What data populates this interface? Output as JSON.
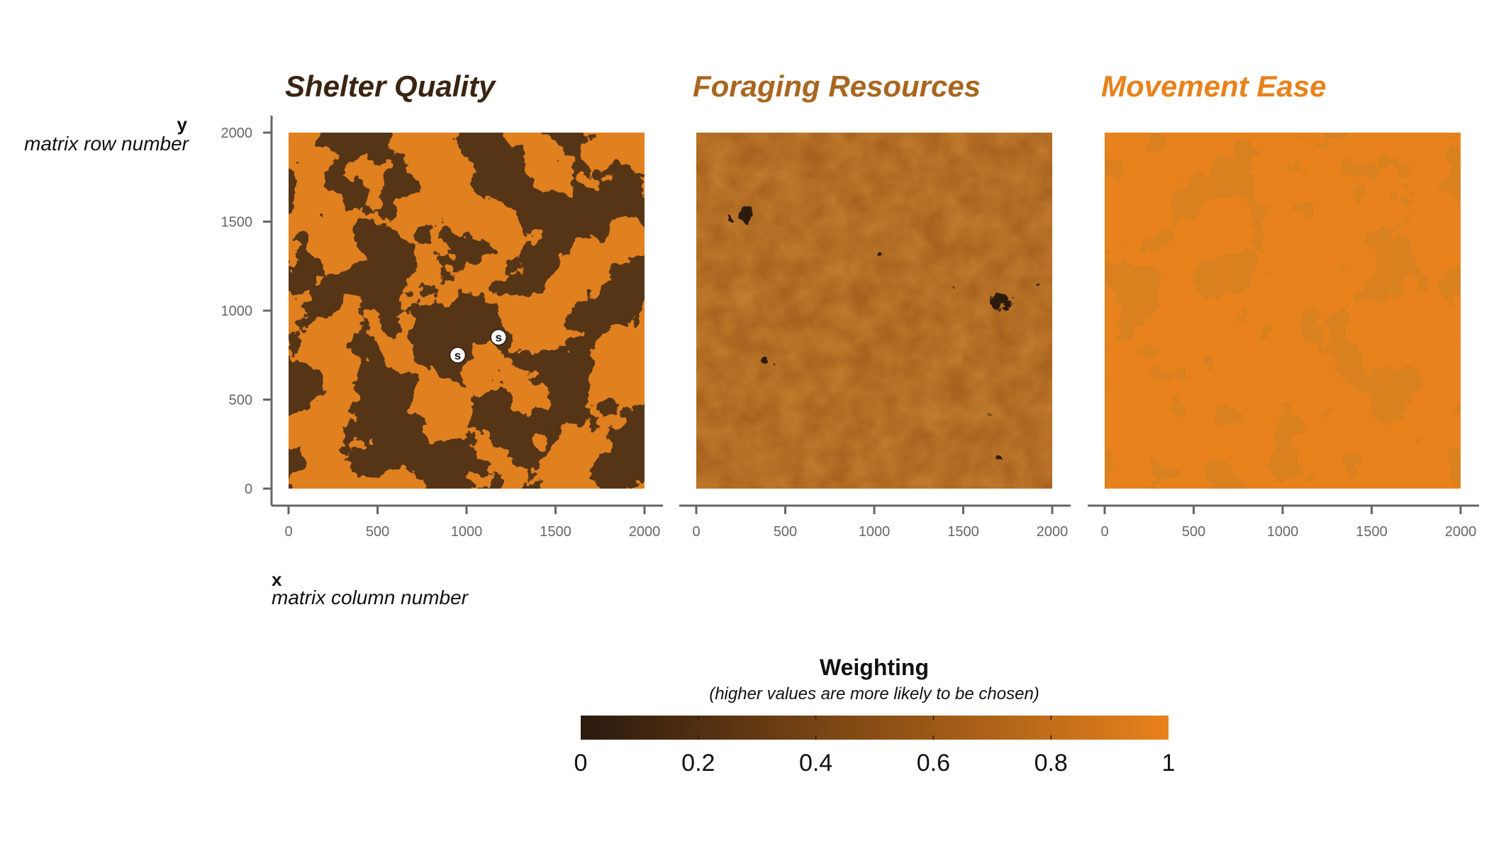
{
  "colors": {
    "low": "#2a1a0e",
    "high": "#e8821c",
    "axis": "#666666",
    "title_shelter": "#3a2512",
    "title_foraging": "#a8661f",
    "title_movement": "#e8821c"
  },
  "axes": {
    "x_letter": "x",
    "x_description": "matrix column number",
    "y_letter": "y",
    "y_description": "matrix row number"
  },
  "legend": {
    "title": "Weighting",
    "subtitle": "(higher values are more likely to be chosen)",
    "min": 0,
    "max": 1,
    "ticks": [
      0,
      0.2,
      0.4,
      0.6,
      0.8,
      1
    ],
    "tick_labels": [
      "0",
      "0.2",
      "0.4",
      "0.6",
      "0.8",
      "1"
    ]
  },
  "chart_data": [
    {
      "type": "heatmap",
      "title": "Shelter Quality",
      "title_color": "#3a2512",
      "xlim": [
        0,
        2000
      ],
      "ylim": [
        0,
        2000
      ],
      "x_ticks": [
        0,
        500,
        1000,
        1500,
        2000
      ],
      "y_ticks": [
        0,
        500,
        1000,
        1500,
        2000
      ],
      "x_tick_labels": [
        "0",
        "500",
        "1000",
        "1500",
        "2000"
      ],
      "y_tick_labels": [
        "0",
        "500",
        "1000",
        "1500",
        "2000"
      ],
      "value_range": [
        0,
        1
      ],
      "pattern": "binary patches, roughly half low (~0.2) and half high (~0.9)",
      "markers": [
        {
          "label": "s",
          "x": 950,
          "y": 750
        },
        {
          "label": "s",
          "x": 1180,
          "y": 850
        }
      ]
    },
    {
      "type": "heatmap",
      "title": "Foraging Resources",
      "title_color": "#a8661f",
      "xlim": [
        0,
        2000
      ],
      "ylim": [
        0,
        2000
      ],
      "x_ticks": [
        0,
        500,
        1000,
        1500,
        2000
      ],
      "x_tick_labels": [
        "0",
        "500",
        "1000",
        "1500",
        "2000"
      ],
      "value_range": [
        0,
        1
      ],
      "pattern": "continuous mid-range values (~0.45-0.7) with dark patches (~0.05)"
    },
    {
      "type": "heatmap",
      "title": "Movement Ease",
      "title_color": "#e8821c",
      "xlim": [
        0,
        2000
      ],
      "ylim": [
        0,
        2000
      ],
      "x_ticks": [
        0,
        500,
        1000,
        1500,
        2000
      ],
      "x_tick_labels": [
        "0",
        "500",
        "1000",
        "1500",
        "2000"
      ],
      "value_range": [
        0,
        1
      ],
      "pattern": "mostly high (~0.95) with mid patches (~0.8) and small dark patches (~0.05)"
    }
  ]
}
